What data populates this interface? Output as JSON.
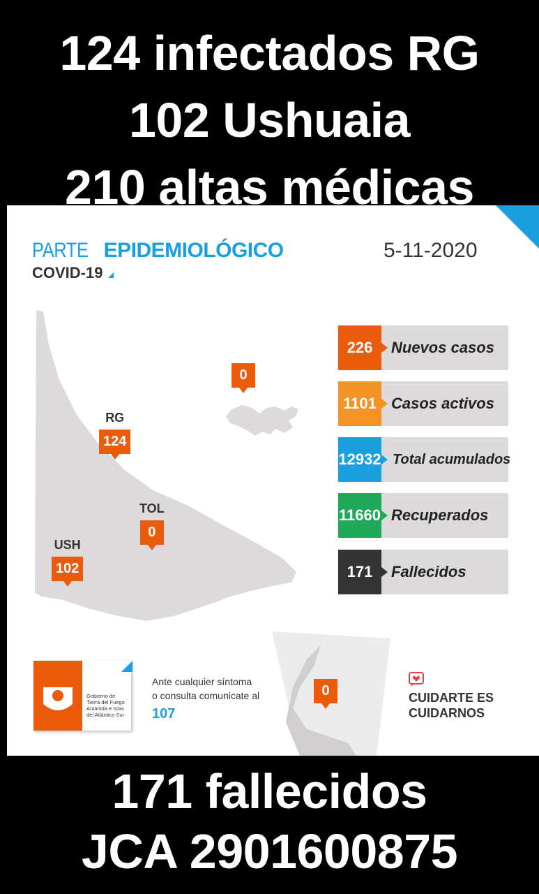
{
  "headline_top": [
    "124 infectados RG",
    "102 Ushuaia",
    "210 altas médicas"
  ],
  "headline_bottom": [
    "171 fallecidos",
    "JCA 2901600875"
  ],
  "card": {
    "title_light": "PARTE ",
    "title_bold": "EPIDEMIOLÓGICO",
    "subtitle": "COVID-19",
    "date": "5-11-2020"
  },
  "markers": {
    "malvinas": {
      "value": "0"
    },
    "rg": {
      "label": "RG",
      "value": "124"
    },
    "tol": {
      "label": "TOL",
      "value": "0"
    },
    "ush": {
      "label": "USH",
      "value": "102"
    },
    "antartida": {
      "value": "0"
    }
  },
  "stats": [
    {
      "value": "226",
      "label": "Nuevos casos",
      "color": "#ea5b0c"
    },
    {
      "value": "1101",
      "label": "Casos activos",
      "color": "#f39325"
    },
    {
      "value": "12932",
      "label": "Total acumulados",
      "color": "#1a9fe0"
    },
    {
      "value": "11660",
      "label": "Recuperados",
      "color": "#1faa59"
    },
    {
      "value": "171",
      "label": "Fallecidos",
      "color": "#333333"
    }
  ],
  "logo": {
    "lines": [
      "Gobierno de",
      "Tierra del Fuego",
      "Antártida e Islas",
      "del Atlántico Sur"
    ]
  },
  "contact": {
    "line1": "Ante cualquier síntoma",
    "line2": "o consulta comunicate al",
    "phone": "107"
  },
  "slogan": {
    "line1": "CUIDARTE ES",
    "line2": "CUIDARNOS"
  },
  "colors": {
    "accent": "#1a9fe0",
    "orange": "#ea5b0c"
  }
}
